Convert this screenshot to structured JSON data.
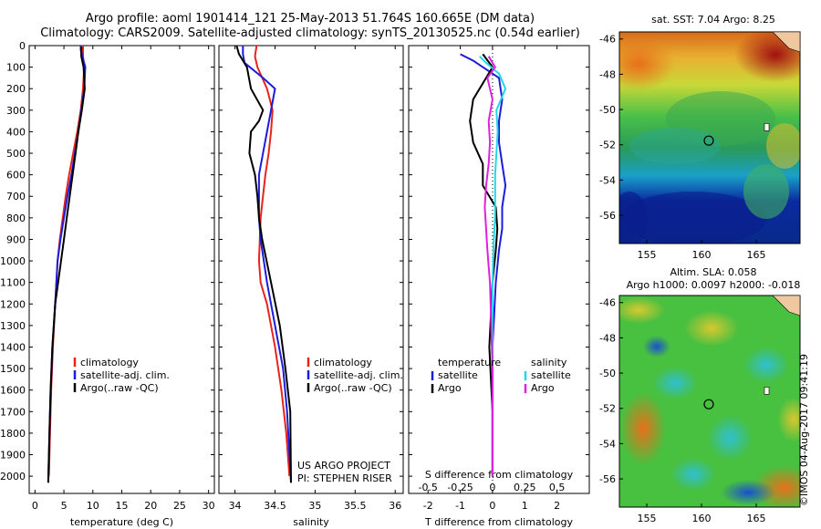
{
  "header": {
    "title_line1": "Argo profile: aoml 1901414_121 25-May-2013 51.764S 160.665E (DM data)",
    "title_line2": "Climatology: CARS2009. Satellite-adjusted climatology: synTS_20130525.nc (0.54d earlier)"
  },
  "colors": {
    "climatology": "#e8231b",
    "satellite": "#1c1cdc",
    "argo": "#000000",
    "s_satellite": "#22d8e8",
    "s_argo": "#e020e0"
  },
  "chart_data": [
    {
      "type": "line",
      "xlabel": "temperature (deg C)",
      "xlim": [
        -1,
        31
      ],
      "xticks": [
        0,
        5,
        10,
        15,
        20,
        25,
        30
      ],
      "ylim": [
        2080,
        0
      ],
      "yticks": [
        0,
        100,
        200,
        300,
        400,
        500,
        600,
        700,
        800,
        900,
        1000,
        1100,
        1200,
        1300,
        1400,
        1500,
        1600,
        1700,
        1800,
        1900,
        2000
      ],
      "legend": [
        "climatology",
        "satellite-adj. clim.",
        "Argo(..raw -QC)"
      ],
      "series": [
        {
          "name": "climatology",
          "color": "climatology",
          "x": [
            8.3,
            8.3,
            8.5,
            8.3,
            7.9,
            7.3,
            6.6,
            5.9,
            5.3,
            4.8,
            4.3,
            3.9,
            3.5,
            3.1,
            2.8,
            2.6,
            2.4
          ],
          "y": [
            0,
            50,
            100,
            200,
            300,
            400,
            500,
            600,
            700,
            800,
            900,
            1000,
            1200,
            1400,
            1600,
            1800,
            2000
          ]
        },
        {
          "name": "satellite-adj. clim.",
          "color": "satellite",
          "x": [
            7.9,
            7.9,
            8.3,
            8.7,
            8.5,
            8.0,
            7.5,
            6.9,
            6.3,
            5.6,
            5.0,
            4.4,
            3.9,
            3.5,
            3.0,
            2.7,
            2.5,
            2.3
          ],
          "y": [
            0,
            20,
            60,
            100,
            200,
            300,
            400,
            500,
            600,
            700,
            800,
            900,
            1000,
            1200,
            1400,
            1600,
            1800,
            2030
          ]
        },
        {
          "name": "Argo(..raw -QC)",
          "color": "argo",
          "x": [
            8.0,
            8.0,
            8.4,
            8.6,
            8.1,
            7.5,
            7.0,
            6.5,
            6.0,
            5.5,
            5.0,
            4.5,
            4.0,
            3.5,
            3.0,
            2.7,
            2.5,
            2.3
          ],
          "y": [
            5,
            50,
            100,
            200,
            300,
            400,
            500,
            600,
            700,
            800,
            900,
            1000,
            1100,
            1200,
            1400,
            1600,
            1800,
            2030
          ]
        }
      ]
    },
    {
      "type": "line",
      "xlabel": "salinity",
      "xlim": [
        33.8,
        36.1
      ],
      "xticks": [
        34,
        34.5,
        35,
        35.5,
        36
      ],
      "ylim": [
        2080,
        0
      ],
      "legend": [
        "climatology",
        "satellite-adj. clim.",
        "Argo(..raw -QC)"
      ],
      "annotations": [
        "US ARGO PROJECT",
        "PI: STEPHEN RISER"
      ],
      "series": [
        {
          "name": "climatology",
          "color": "climatology",
          "x": [
            34.27,
            34.25,
            34.28,
            34.4,
            34.47,
            34.45,
            34.42,
            34.38,
            34.35,
            34.32,
            34.31,
            34.3,
            34.32,
            34.4,
            34.5,
            34.58,
            34.64,
            34.68
          ],
          "y": [
            0,
            50,
            100,
            200,
            300,
            400,
            500,
            600,
            700,
            800,
            900,
            1000,
            1100,
            1200,
            1400,
            1600,
            1800,
            2000
          ]
        },
        {
          "name": "satellite-adj. clim.",
          "color": "satellite",
          "x": [
            34.1,
            34.1,
            34.12,
            34.35,
            34.5,
            34.45,
            34.4,
            34.35,
            34.3,
            34.3,
            34.3,
            34.32,
            34.4,
            34.5,
            34.6,
            34.65,
            34.7
          ],
          "y": [
            0,
            40,
            80,
            150,
            200,
            300,
            400,
            500,
            600,
            700,
            800,
            900,
            1100,
            1300,
            1500,
            1700,
            2030
          ]
        },
        {
          "name": "Argo(..raw -QC)",
          "color": "argo",
          "x": [
            34.02,
            34.05,
            34.15,
            34.2,
            34.35,
            34.3,
            34.2,
            34.18,
            34.25,
            34.28,
            34.3,
            34.34,
            34.45,
            34.56,
            34.63,
            34.69,
            34.7
          ],
          "y": [
            0,
            40,
            100,
            200,
            300,
            350,
            400,
            500,
            600,
            700,
            800,
            900,
            1100,
            1300,
            1500,
            1700,
            2030
          ]
        }
      ]
    },
    {
      "type": "line",
      "xlabel": "T difference from climatology",
      "x2label": "S difference from climatology",
      "xlim": [
        -2.6,
        3.0
      ],
      "xticks": [
        -2,
        -1,
        0,
        1,
        2
      ],
      "x2lim": [
        -0.65,
        0.75
      ],
      "x2ticks": [
        -0.5,
        -0.25,
        0,
        0.25,
        0.5
      ],
      "x2ticklabels": [
        "-0.5",
        "-0.25",
        "0",
        "0.25",
        "0.5"
      ],
      "ylim": [
        2080,
        0
      ],
      "legend": {
        "temperature_header": "temperature",
        "salinity_header": "salinity",
        "items": [
          "satellite",
          "Argo",
          "satellite",
          "Argo"
        ]
      },
      "series": [
        {
          "name": "satellite",
          "group": "temperature",
          "color": "satellite",
          "x": [
            -1.0,
            -0.6,
            -0.3,
            0.2,
            0.3,
            0.2,
            0.2,
            0.3,
            0.4,
            0.3,
            0.3,
            0.2,
            0.1,
            0.0,
            0.0,
            0.0
          ],
          "y": [
            40,
            70,
            100,
            150,
            250,
            350,
            450,
            550,
            650,
            750,
            850,
            950,
            1100,
            1400,
            1700,
            2000
          ]
        },
        {
          "name": "Argo",
          "group": "temperature",
          "color": "argo",
          "x": [
            -0.3,
            -0.1,
            0.0,
            -0.2,
            -0.6,
            -0.7,
            -0.6,
            -0.3,
            -0.3,
            0.1,
            0.15,
            0.1,
            0.0,
            -0.1,
            0.0,
            0.0
          ],
          "y": [
            40,
            80,
            100,
            150,
            250,
            350,
            450,
            550,
            650,
            750,
            850,
            950,
            1100,
            1400,
            1700,
            2000
          ]
        },
        {
          "name": "satellite",
          "group": "salinity",
          "color": "s_satellite",
          "x": [
            -0.1,
            -0.05,
            0.05,
            0.1,
            0.03,
            0.04,
            0.03,
            0.02,
            0.02,
            0.02,
            0.01,
            0.0,
            0.0,
            0.0
          ],
          "y": [
            50,
            80,
            130,
            200,
            300,
            400,
            500,
            600,
            700,
            800,
            900,
            1100,
            1500,
            2000
          ]
        },
        {
          "name": "Argo",
          "group": "salinity",
          "color": "s_argo",
          "x": [
            -0.03,
            0.02,
            -0.04,
            0.0,
            -0.03,
            -0.02,
            -0.03,
            -0.05,
            -0.06,
            -0.05,
            -0.04,
            -0.02,
            0.0,
            0.0
          ],
          "y": [
            50,
            100,
            150,
            250,
            350,
            450,
            550,
            650,
            750,
            850,
            950,
            1100,
            1500,
            2000
          ]
        }
      ]
    },
    {
      "type": "heatmap",
      "title": "sat. SST: 7.04  Argo: 8.25",
      "xticks": [
        155,
        160,
        165
      ],
      "yticks": [
        -46,
        -48,
        -50,
        -52,
        -54,
        -56
      ],
      "xlim": [
        152.5,
        169
      ],
      "ylim": [
        -57.6,
        -45.6
      ],
      "marker": {
        "lon": 160.665,
        "lat": -51.764
      }
    },
    {
      "type": "heatmap",
      "title": "Altim. SLA: 0.058",
      "subtitle": "Argo h1000: 0.0097  h2000: -0.018",
      "xticks": [
        155,
        160,
        165
      ],
      "yticks": [
        -46,
        -48,
        -50,
        -52,
        -54,
        -56
      ],
      "xlim": [
        152.5,
        169
      ],
      "ylim": [
        -57.6,
        -45.6
      ],
      "marker": {
        "lon": 160.665,
        "lat": -51.764
      }
    }
  ],
  "footer": {
    "credit": "©IMOS 04-Aug-2017 09:41:19"
  }
}
